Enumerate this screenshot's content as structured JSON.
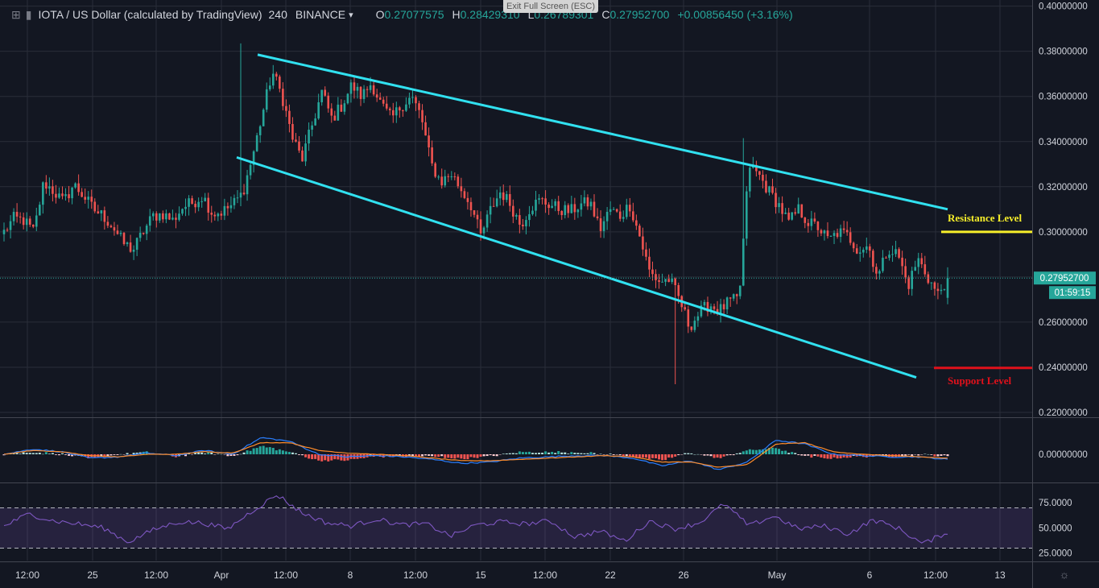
{
  "header": {
    "symbol": "IOTA / US Dollar (calculated by TradingView)",
    "interval": "240",
    "exchange": "BINANCE",
    "open_key": "O",
    "open": "0.27077575",
    "high_key": "H",
    "high": "0.28429310",
    "low_key": "L",
    "low": "0.26789301",
    "close_key": "C",
    "close": "0.27952700",
    "change": "+0.00856450 (+3.16%)"
  },
  "exit_fullscreen": "Exit Full Screen (ESC)",
  "annotations": {
    "resistance": "Resistance Level",
    "support": "Support Level",
    "price_tag": "0.27952700",
    "countdown": "01:59:15"
  },
  "colors": {
    "background": "#131722",
    "up": "#26a69a",
    "down": "#ef5350",
    "channel": "#31e1f0",
    "resistance": "#f7ef2a",
    "support": "#e0111b",
    "macd": "#2a7fff",
    "signal": "#ff8c2a",
    "rsi": "#7e57c2"
  },
  "chart_data": [
    {
      "type": "candlestick",
      "title": "IOTA / US Dollar (calculated by TradingView) 240 BINANCE",
      "y_ticks": [
        "0.40000000",
        "0.38000000",
        "0.36000000",
        "0.34000000",
        "0.32000000",
        "0.30000000",
        "0.28000000",
        "0.26000000",
        "0.24000000",
        "0.22000000"
      ],
      "ylim": [
        0.22,
        0.4
      ],
      "x_ticks": [
        "12:00",
        "25",
        "12:00",
        "Apr",
        "12:00",
        "8",
        "12:00",
        "15",
        "12:00",
        "22",
        "26",
        "May",
        "6",
        "12:00",
        "13"
      ],
      "ohlc": {
        "open": 0.27077575,
        "high": 0.2842931,
        "low": 0.26789301,
        "close": 0.279527
      },
      "anchors": [
        0.3,
        0.306,
        0.305,
        0.3,
        0.322,
        0.318,
        0.313,
        0.321,
        0.316,
        0.31,
        0.307,
        0.302,
        0.295,
        0.292,
        0.3,
        0.307,
        0.308,
        0.305,
        0.311,
        0.313,
        0.316,
        0.308,
        0.309,
        0.312,
        0.317,
        0.333,
        0.352,
        0.371,
        0.36,
        0.342,
        0.332,
        0.347,
        0.362,
        0.35,
        0.356,
        0.365,
        0.36,
        0.366,
        0.356,
        0.35,
        0.356,
        0.36,
        0.351,
        0.33,
        0.322,
        0.326,
        0.319,
        0.312,
        0.298,
        0.31,
        0.318,
        0.312,
        0.303,
        0.311,
        0.314,
        0.312,
        0.31,
        0.309,
        0.312,
        0.313,
        0.301,
        0.31,
        0.307,
        0.312,
        0.298,
        0.282,
        0.278,
        0.279,
        0.27,
        0.258,
        0.264,
        0.268,
        0.265,
        0.269,
        0.27,
        0.33,
        0.325,
        0.318,
        0.312,
        0.304,
        0.31,
        0.304,
        0.302,
        0.296,
        0.3,
        0.298,
        0.292,
        0.294,
        0.28,
        0.293,
        0.29,
        0.276,
        0.288,
        0.28,
        0.272,
        0.28
      ],
      "channel_upper": {
        "x": [
          "Apr 5 12:00",
          "May 11 12:00"
        ],
        "y": [
          0.3785,
          0.31
        ]
      },
      "channel_lower": {
        "x": [
          "Apr 1 00:00",
          "May 10 00:00"
        ],
        "y": [
          0.333,
          0.2355
        ]
      },
      "resistance_level": 0.3,
      "support_level": 0.2397,
      "annotations": [
        "Resistance Level",
        "Support Level"
      ],
      "last_price": "0.27952700",
      "countdown": "01:59:15"
    },
    {
      "type": "line",
      "title": "MACD",
      "y_ticks": [
        "0.00000000"
      ],
      "anchors_macd": [
        0.0,
        0.004,
        0.002,
        -0.003,
        -0.002,
        0.001,
        -0.001,
        0.003,
        0.0,
        0.013,
        0.01,
        0.0,
        -0.002,
        -0.001,
        -0.002,
        -0.004,
        -0.007,
        -0.006,
        -0.003,
        -0.002,
        -0.001,
        -0.001,
        -0.003,
        -0.009,
        -0.005,
        -0.012,
        -0.006,
        0.011,
        0.008,
        0.0,
        -0.001,
        -0.002,
        -0.002,
        -0.004
      ],
      "anchors_signal": [
        0.0,
        0.003,
        0.002,
        -0.001,
        -0.002,
        0.0,
        0.0,
        0.002,
        0.001,
        0.009,
        0.009,
        0.003,
        0.001,
        0.0,
        -0.001,
        -0.003,
        -0.005,
        -0.005,
        -0.004,
        -0.003,
        -0.002,
        -0.001,
        -0.002,
        -0.006,
        -0.006,
        -0.01,
        -0.008,
        0.008,
        0.009,
        0.002,
        0.0,
        -0.001,
        -0.002,
        -0.003
      ]
    },
    {
      "type": "line",
      "title": "RSI",
      "y_ticks": [
        "75.0000",
        "50.0000",
        "25.0000"
      ],
      "ylim": [
        18,
        95
      ],
      "bands": [
        70,
        30
      ],
      "anchors": [
        52,
        64,
        57,
        54,
        50,
        36,
        48,
        56,
        55,
        49,
        67,
        83,
        65,
        55,
        52,
        59,
        53,
        54,
        42,
        53,
        56,
        54,
        57,
        41,
        47,
        37,
        57,
        49,
        55,
        74,
        52,
        62,
        49,
        52,
        44,
        58,
        50,
        34,
        46
      ]
    }
  ]
}
